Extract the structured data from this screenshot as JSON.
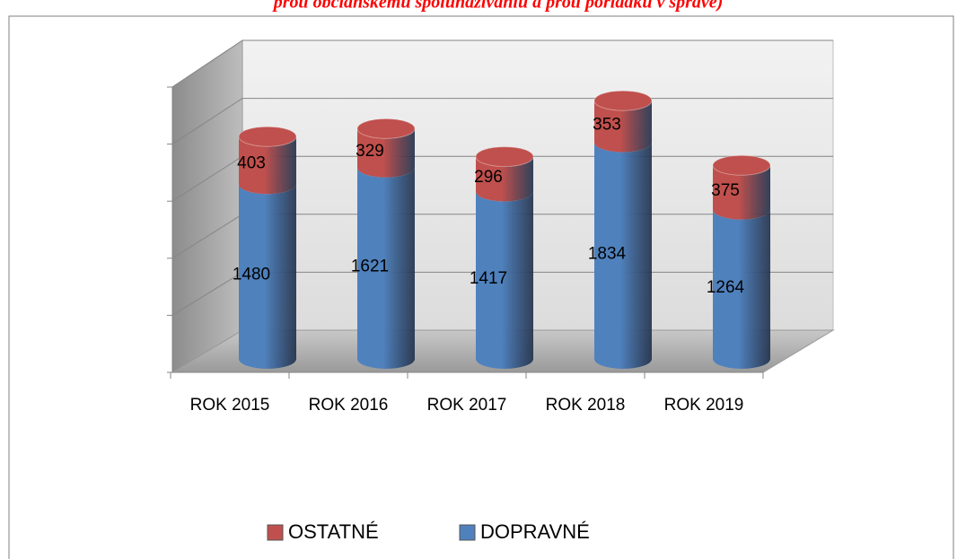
{
  "chart_data": {
    "type": "bar3d_stacked",
    "title": "proti občianskemu spolunažívaniu a proti poriadku v správe)",
    "categories": [
      "ROK 2015",
      "ROK 2016",
      "ROK 2017",
      "ROK 2018",
      "ROK 2019"
    ],
    "series": [
      {
        "name": "DOPRAVNÉ",
        "color": "#4f81bd",
        "values": [
          1480,
          1621,
          1417,
          1834,
          1264
        ]
      },
      {
        "name": "OSTATNÉ",
        "color": "#c0504d",
        "values": [
          403,
          329,
          296,
          353,
          375
        ]
      }
    ],
    "ylim": [
      0,
      2500
    ],
    "yticks": [
      0,
      500,
      1000,
      1500,
      2000,
      2500
    ],
    "grid": true,
    "legend": "bottom"
  }
}
